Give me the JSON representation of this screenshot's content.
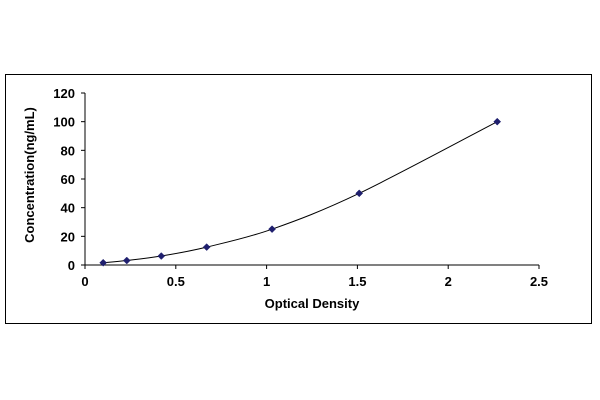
{
  "chart_data": {
    "type": "scatter",
    "title": "",
    "xlabel": "Optical Density",
    "ylabel": "Concentration(ng/mL)",
    "xlim": [
      0,
      2.5
    ],
    "ylim": [
      0,
      120
    ],
    "x_ticks": [
      0,
      0.5,
      1,
      1.5,
      2,
      2.5
    ],
    "y_ticks": [
      0,
      20,
      40,
      60,
      80,
      100,
      120
    ],
    "grid": false,
    "legend": "none",
    "trendline": "smooth",
    "series": [
      {
        "x": [
          0.1,
          0.23,
          0.42,
          0.67,
          1.03,
          1.51,
          2.27
        ],
        "y": [
          1.56,
          3.12,
          6.25,
          12.5,
          25,
          50,
          100
        ],
        "marker": "diamond",
        "color": "#1f1f6e"
      }
    ]
  }
}
